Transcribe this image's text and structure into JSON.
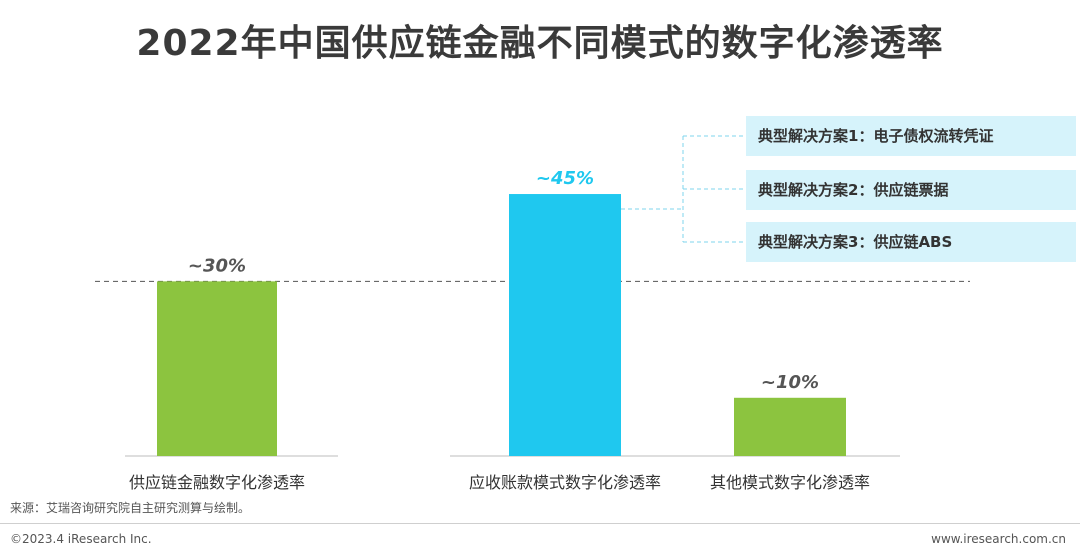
{
  "title": "2022年中国供应链金融不同模式的数字化渗透率",
  "chart_data": {
    "type": "bar",
    "categories": [
      "供应链金融数字化渗透率",
      "应收账款模式数字化渗透率",
      "其他模式数字化渗透率"
    ],
    "values": [
      30,
      45,
      10
    ],
    "data_labels": [
      "~30%",
      "~45%",
      "~10%"
    ],
    "colors": [
      "#8cc43f",
      "#1fc8ef",
      "#8cc43f"
    ],
    "label_colors": [
      "#555555",
      "#1fc8ef",
      "#555555"
    ],
    "ylim": [
      0,
      56
    ],
    "reference_line": {
      "value": 30
    },
    "annotations": [
      "典型解决方案1：电子债权流转凭证",
      "典型解决方案2：供应链票据",
      "典型解决方案3：供应链ABS"
    ]
  },
  "source": "来源：艾瑞咨询研究院自主研究测算与绘制。",
  "footer": {
    "copyright": "©2023.4 iResearch Inc.",
    "website": "www.iresearch.com.cn"
  }
}
